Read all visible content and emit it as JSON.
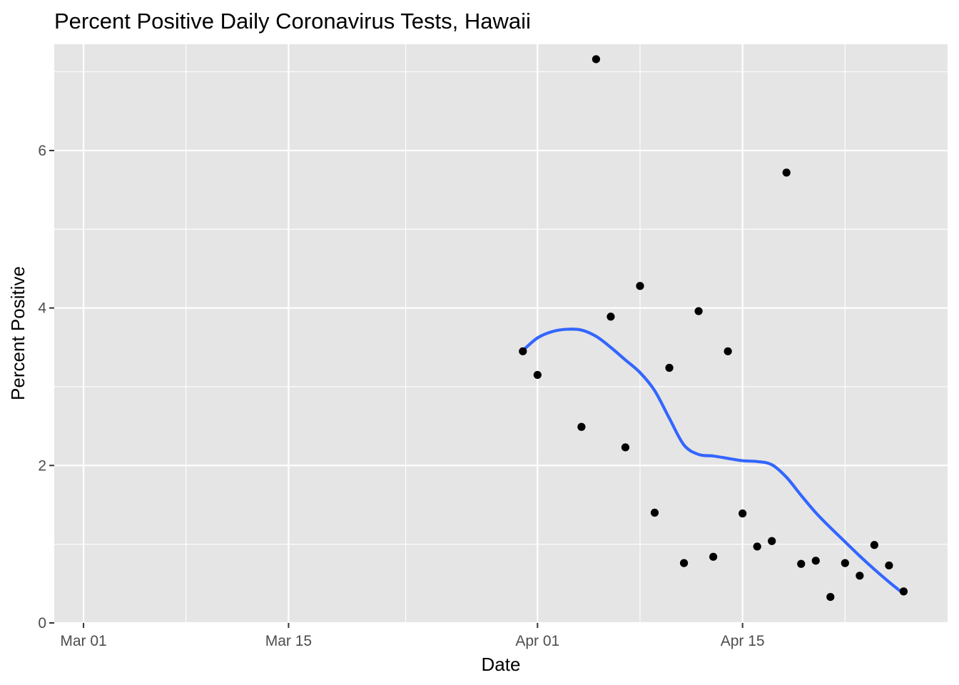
{
  "chart_data": {
    "type": "scatter",
    "title": "Percent Positive Daily Coronavirus Tests, Hawaii",
    "xlabel": "Date",
    "ylabel": "Percent Positive",
    "x_axis": {
      "kind": "date",
      "range": [
        "2020-02-28",
        "2020-04-29"
      ],
      "ticks": [
        {
          "date": "2020-03-01",
          "label": "Mar 01"
        },
        {
          "date": "2020-03-15",
          "label": "Mar 15"
        },
        {
          "date": "2020-04-01",
          "label": "Apr 01"
        },
        {
          "date": "2020-04-15",
          "label": "Apr 15"
        }
      ],
      "minor_ticks": [
        "2020-03-08",
        "2020-03-23",
        "2020-04-08",
        "2020-04-22"
      ]
    },
    "y_axis": {
      "range": [
        0,
        7.35
      ],
      "ticks": [
        0,
        2,
        4,
        6
      ],
      "tick_labels": [
        "0",
        "2",
        "4",
        "6"
      ],
      "minor_ticks": [
        1,
        3,
        5,
        7
      ]
    },
    "grid": true,
    "series": [
      {
        "type": "scatter",
        "color": "#000000",
        "points": [
          {
            "x": "2020-03-31",
            "y": 3.45
          },
          {
            "x": "2020-04-01",
            "y": 3.15
          },
          {
            "x": "2020-04-04",
            "y": 2.49
          },
          {
            "x": "2020-04-05",
            "y": 7.16
          },
          {
            "x": "2020-04-06",
            "y": 3.89
          },
          {
            "x": "2020-04-07",
            "y": 2.23
          },
          {
            "x": "2020-04-08",
            "y": 4.28
          },
          {
            "x": "2020-04-09",
            "y": 1.4
          },
          {
            "x": "2020-04-10",
            "y": 3.24
          },
          {
            "x": "2020-04-11",
            "y": 0.76
          },
          {
            "x": "2020-04-12",
            "y": 3.96
          },
          {
            "x": "2020-04-13",
            "y": 0.84
          },
          {
            "x": "2020-04-14",
            "y": 3.45
          },
          {
            "x": "2020-04-15",
            "y": 1.39
          },
          {
            "x": "2020-04-16",
            "y": 0.97
          },
          {
            "x": "2020-04-17",
            "y": 1.04
          },
          {
            "x": "2020-04-18",
            "y": 5.72
          },
          {
            "x": "2020-04-19",
            "y": 0.75
          },
          {
            "x": "2020-04-20",
            "y": 0.79
          },
          {
            "x": "2020-04-21",
            "y": 0.33
          },
          {
            "x": "2020-04-22",
            "y": 0.76
          },
          {
            "x": "2020-04-23",
            "y": 0.6
          },
          {
            "x": "2020-04-24",
            "y": 0.99
          },
          {
            "x": "2020-04-25",
            "y": 0.73
          },
          {
            "x": "2020-04-26",
            "y": 0.4
          }
        ]
      },
      {
        "type": "line",
        "smoothed": true,
        "color": "#3366FF",
        "points": [
          {
            "x": "2020-03-31",
            "y": 3.46
          },
          {
            "x": "2020-04-01",
            "y": 3.62
          },
          {
            "x": "2020-04-02",
            "y": 3.7
          },
          {
            "x": "2020-04-03",
            "y": 3.73
          },
          {
            "x": "2020-04-04",
            "y": 3.72
          },
          {
            "x": "2020-04-05",
            "y": 3.64
          },
          {
            "x": "2020-04-06",
            "y": 3.5
          },
          {
            "x": "2020-04-07",
            "y": 3.34
          },
          {
            "x": "2020-04-08",
            "y": 3.18
          },
          {
            "x": "2020-04-09",
            "y": 2.95
          },
          {
            "x": "2020-04-10",
            "y": 2.6
          },
          {
            "x": "2020-04-11",
            "y": 2.26
          },
          {
            "x": "2020-04-12",
            "y": 2.14
          },
          {
            "x": "2020-04-13",
            "y": 2.12
          },
          {
            "x": "2020-04-14",
            "y": 2.09
          },
          {
            "x": "2020-04-15",
            "y": 2.06
          },
          {
            "x": "2020-04-16",
            "y": 2.05
          },
          {
            "x": "2020-04-17",
            "y": 2.01
          },
          {
            "x": "2020-04-18",
            "y": 1.85
          },
          {
            "x": "2020-04-19",
            "y": 1.62
          },
          {
            "x": "2020-04-20",
            "y": 1.4
          },
          {
            "x": "2020-04-21",
            "y": 1.21
          },
          {
            "x": "2020-04-22",
            "y": 1.03
          },
          {
            "x": "2020-04-23",
            "y": 0.85
          },
          {
            "x": "2020-04-24",
            "y": 0.68
          },
          {
            "x": "2020-04-25",
            "y": 0.52
          },
          {
            "x": "2020-04-26",
            "y": 0.37
          }
        ]
      }
    ]
  },
  "colors": {
    "panel_background": "#E5E5E5",
    "grid": "#FFFFFF",
    "points": "#000000",
    "smooth_line": "#3366FF",
    "tick_label": "#4D4D4D"
  }
}
